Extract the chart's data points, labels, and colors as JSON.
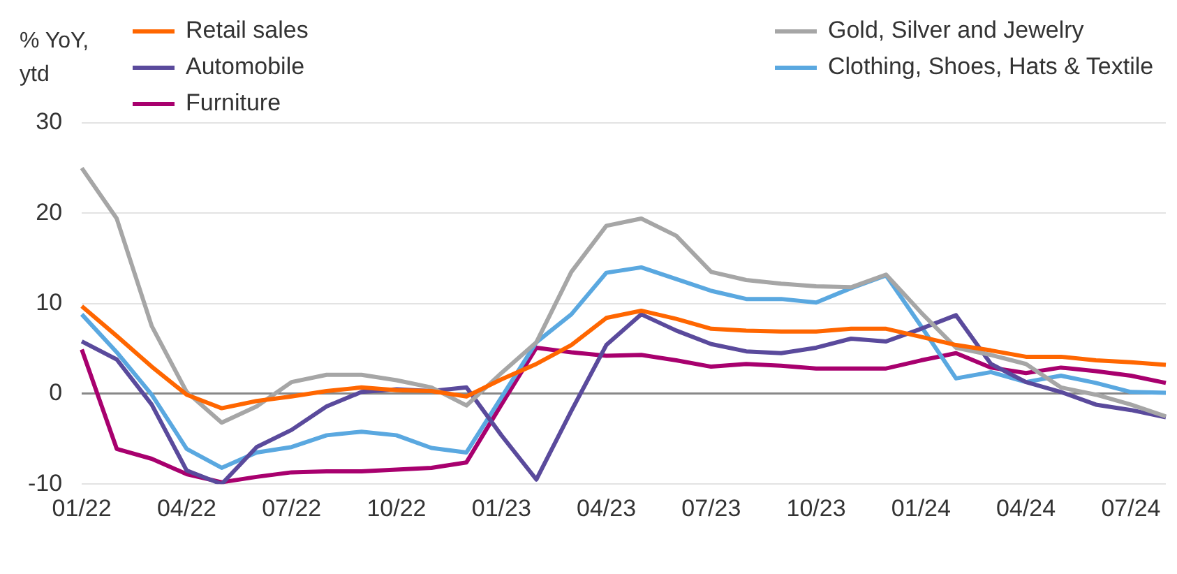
{
  "chart_data": {
    "type": "line",
    "ylabel": "% YoY, ytd",
    "categories": [
      "01/22",
      null,
      null,
      "04/22",
      null,
      null,
      "07/22",
      null,
      null,
      "10/22",
      null,
      null,
      "01/23",
      null,
      null,
      "04/23",
      null,
      null,
      "07/23",
      null,
      null,
      "10/23",
      null,
      null,
      "01/24",
      null,
      null,
      "04/24",
      null,
      null,
      "07/24",
      null
    ],
    "series": [
      {
        "name": "Retail sales",
        "color": "#ff6600",
        "values": [
          9.7,
          6.4,
          3.0,
          -0.1,
          -1.6,
          -0.8,
          -0.3,
          0.3,
          0.7,
          0.4,
          0.3,
          -0.3,
          1.6,
          3.3,
          5.4,
          8.4,
          9.2,
          8.3,
          7.2,
          7.0,
          6.9,
          6.9,
          7.2,
          7.2,
          6.3,
          5.4,
          4.8,
          4.1,
          4.1,
          3.7,
          3.5,
          3.2
        ]
      },
      {
        "name": "Gold, Silver and Jewelry",
        "color": "#a6a6a6",
        "values": [
          25,
          19.4,
          7.5,
          0.2,
          -3.2,
          -1.4,
          1.3,
          2.1,
          2.1,
          1.5,
          0.7,
          -1.3,
          2.3,
          5.7,
          13.5,
          18.6,
          19.4,
          17.5,
          13.5,
          12.6,
          12.2,
          11.9,
          11.8,
          13.2,
          9.0,
          5.1,
          4.3,
          3.3,
          0.7,
          -0.1,
          -1.2,
          -2.5
        ]
      },
      {
        "name": "Automobile",
        "color": "#5a4a9c",
        "values": [
          5.8,
          3.8,
          -1.2,
          -8.5,
          -10,
          -5.9,
          -4.0,
          -1.4,
          0.2,
          0.5,
          0.3,
          0.7,
          -4.6,
          -9.5,
          -1.9,
          5.4,
          8.8,
          7.0,
          5.5,
          4.7,
          4.5,
          5.1,
          6.1,
          5.8,
          7.2,
          8.7,
          3.3,
          1.3,
          0.2,
          -1.2,
          -1.8,
          -2.6
        ]
      },
      {
        "name": "Clothing, Shoes, Hats & Textile",
        "color": "#5aa8e0",
        "values": [
          8.8,
          4.6,
          -0.1,
          -6.1,
          -8.2,
          -6.5,
          -5.9,
          -4.6,
          -4.2,
          -4.6,
          -6.0,
          -6.5,
          -0.4,
          5.7,
          8.8,
          13.4,
          14.0,
          12.7,
          11.4,
          10.5,
          10.5,
          10.1,
          11.7,
          13.1,
          7.5,
          1.7,
          2.4,
          1.3,
          2.0,
          1.2,
          0.2,
          0.1
        ]
      },
      {
        "name": "Furniture",
        "color": "#a8006e",
        "values": [
          4.9,
          -6.1,
          -7.2,
          -8.9,
          -9.8,
          -9.2,
          -8.7,
          -8.6,
          -8.6,
          -8.4,
          -8.2,
          -7.6,
          -1.2,
          5.1,
          4.6,
          4.2,
          4.3,
          3.7,
          3.0,
          3.3,
          3.1,
          2.8,
          2.8,
          2.8,
          3.7,
          4.5,
          2.9,
          2.3,
          2.9,
          2.5,
          2.0,
          1.2
        ]
      }
    ],
    "ylim": [
      -10,
      30
    ],
    "yticks": [
      -10,
      0,
      10,
      20,
      30
    ],
    "grid": "y",
    "legend": "top",
    "marker": "none",
    "line_style": "solid"
  }
}
